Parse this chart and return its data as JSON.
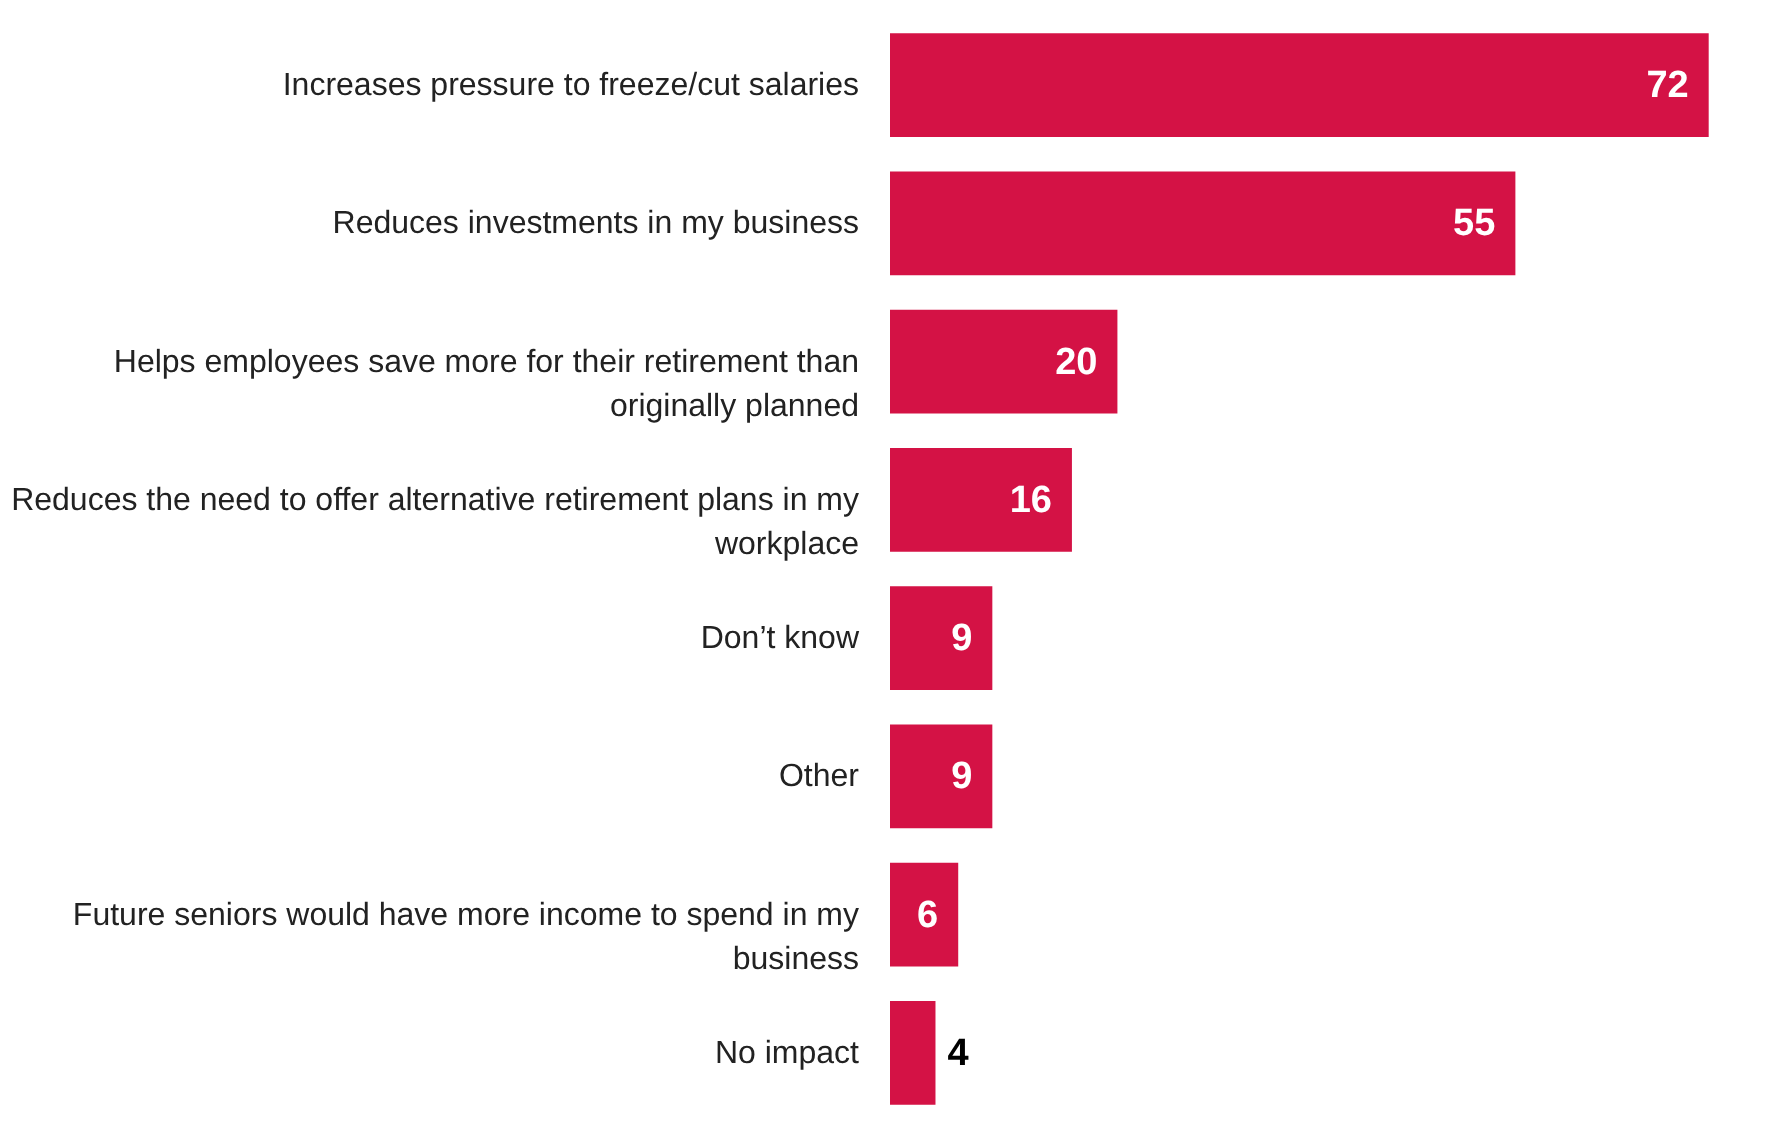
{
  "chart_data": {
    "type": "bar",
    "orientation": "horizontal",
    "categories": [
      "Increases pressure to freeze/cut salaries",
      "Reduces investments in my business",
      "Helps employees save more for their retirement than originally planned",
      "Reduces the need to offer alternative retirement plans in my workplace",
      "Don’t know",
      "Other",
      "Future seniors would have more income to spend in my business",
      "No impact"
    ],
    "values": [
      72,
      55,
      20,
      16,
      9,
      9,
      6,
      4
    ],
    "color": "#d41245",
    "data_labels": true
  }
}
